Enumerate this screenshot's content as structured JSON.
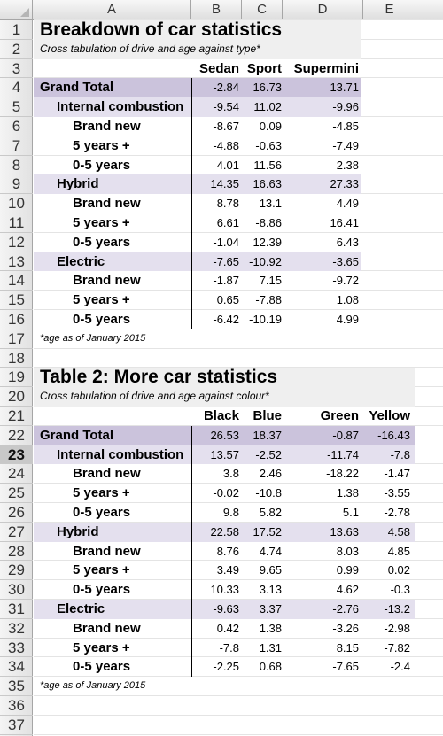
{
  "columns": [
    "A",
    "B",
    "C",
    "D",
    "E"
  ],
  "rows": [
    "1",
    "2",
    "3",
    "4",
    "5",
    "6",
    "7",
    "8",
    "9",
    "10",
    "11",
    "12",
    "13",
    "14",
    "15",
    "16",
    "17",
    "18",
    "19",
    "20",
    "21",
    "22",
    "23",
    "24",
    "25",
    "26",
    "27",
    "28",
    "29",
    "30",
    "31",
    "32",
    "33",
    "34",
    "35",
    "36",
    "37"
  ],
  "selected_row": "23",
  "table1": {
    "title": "Breakdown of car statistics",
    "subtitle": "Cross tabulation of drive and age against type*",
    "headers": [
      "Sedan",
      "Sport",
      "Supermini"
    ],
    "rows": [
      {
        "label": "Grand Total",
        "level": 0,
        "values": [
          "-2.84",
          "16.73",
          "13.71"
        ]
      },
      {
        "label": "Internal combustion",
        "level": 1,
        "values": [
          "-9.54",
          "11.02",
          "-9.96"
        ]
      },
      {
        "label": "Brand new",
        "level": 2,
        "values": [
          "-8.67",
          "0.09",
          "-4.85"
        ]
      },
      {
        "label": "5 years +",
        "level": 2,
        "values": [
          "-4.88",
          "-0.63",
          "-7.49"
        ]
      },
      {
        "label": "0-5 years",
        "level": 2,
        "values": [
          "4.01",
          "11.56",
          "2.38"
        ]
      },
      {
        "label": "Hybrid",
        "level": 1,
        "values": [
          "14.35",
          "16.63",
          "27.33"
        ]
      },
      {
        "label": "Brand new",
        "level": 2,
        "values": [
          "8.78",
          "13.1",
          "4.49"
        ]
      },
      {
        "label": "5 years +",
        "level": 2,
        "values": [
          "6.61",
          "-8.86",
          "16.41"
        ]
      },
      {
        "label": "0-5 years",
        "level": 2,
        "values": [
          "-1.04",
          "12.39",
          "6.43"
        ]
      },
      {
        "label": "Electric",
        "level": 1,
        "values": [
          "-7.65",
          "-10.92",
          "-3.65"
        ]
      },
      {
        "label": "Brand new",
        "level": 2,
        "values": [
          "-1.87",
          "7.15",
          "-9.72"
        ]
      },
      {
        "label": "5 years +",
        "level": 2,
        "values": [
          "0.65",
          "-7.88",
          "1.08"
        ]
      },
      {
        "label": "0-5 years",
        "level": 2,
        "values": [
          "-6.42",
          "-10.19",
          "4.99"
        ]
      }
    ],
    "note": "*age as of January 2015"
  },
  "table2": {
    "title": "Table 2: More car statistics",
    "subtitle": "Cross tabulation of drive and age against colour*",
    "headers": [
      "Black",
      "Blue",
      "Green",
      "Yellow"
    ],
    "rows": [
      {
        "label": "Grand Total",
        "level": 0,
        "values": [
          "26.53",
          "18.37",
          "-0.87",
          "-16.43"
        ]
      },
      {
        "label": "Internal combustion",
        "level": 1,
        "values": [
          "13.57",
          "-2.52",
          "-11.74",
          "-7.8"
        ]
      },
      {
        "label": "Brand new",
        "level": 2,
        "values": [
          "3.8",
          "2.46",
          "-18.22",
          "-1.47"
        ]
      },
      {
        "label": "5 years +",
        "level": 2,
        "values": [
          "-0.02",
          "-10.8",
          "1.38",
          "-3.55"
        ]
      },
      {
        "label": "0-5 years",
        "level": 2,
        "values": [
          "9.8",
          "5.82",
          "5.1",
          "-2.78"
        ]
      },
      {
        "label": "Hybrid",
        "level": 1,
        "values": [
          "22.58",
          "17.52",
          "13.63",
          "4.58"
        ]
      },
      {
        "label": "Brand new",
        "level": 2,
        "values": [
          "8.76",
          "4.74",
          "8.03",
          "4.85"
        ]
      },
      {
        "label": "5 years +",
        "level": 2,
        "values": [
          "3.49",
          "9.65",
          "0.99",
          "0.02"
        ]
      },
      {
        "label": "0-5 years",
        "level": 2,
        "values": [
          "10.33",
          "3.13",
          "4.62",
          "-0.3"
        ]
      },
      {
        "label": "Electric",
        "level": 1,
        "values": [
          "-9.63",
          "3.37",
          "-2.76",
          "-13.2"
        ]
      },
      {
        "label": "Brand new",
        "level": 2,
        "values": [
          "0.42",
          "1.38",
          "-3.26",
          "-2.98"
        ]
      },
      {
        "label": "5 years +",
        "level": 2,
        "values": [
          "-7.8",
          "1.31",
          "8.15",
          "-7.82"
        ]
      },
      {
        "label": "0-5 years",
        "level": 2,
        "values": [
          "-2.25",
          "0.68",
          "-7.65",
          "-2.4"
        ]
      }
    ],
    "note": "*age as of January 2015"
  }
}
